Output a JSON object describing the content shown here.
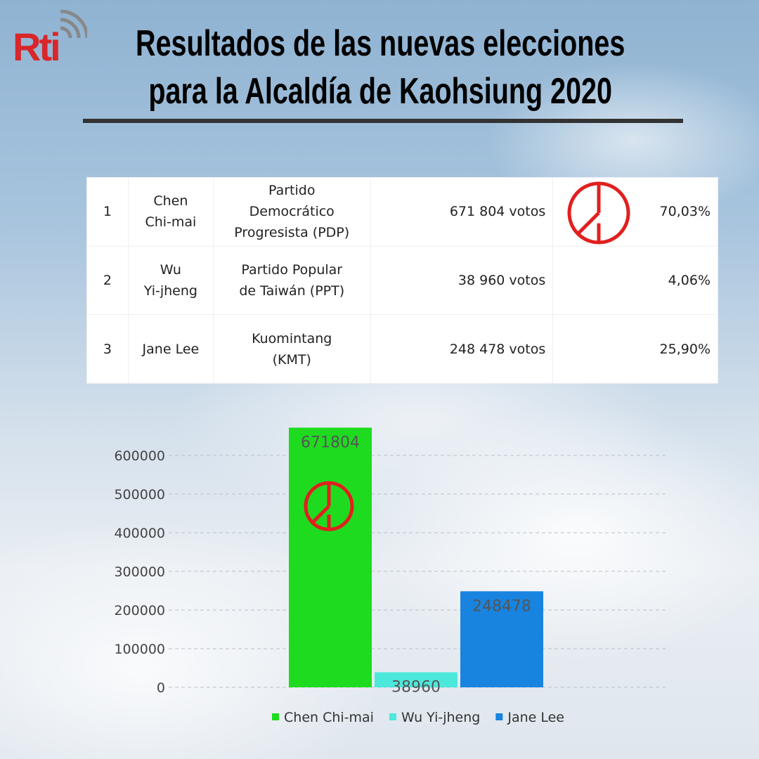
{
  "header": {
    "logo": "Rti",
    "title_lines": [
      "Resultados de las nuevas elecciones",
      "para la Alcaldía de Kaohsiung 2020"
    ]
  },
  "table": {
    "rows": [
      [
        "1",
        "Chen\nChi-mai",
        "Partido\nDemocrático\nProgresista (PDP)",
        "671 804 votos",
        "70,03%"
      ],
      [
        "2",
        "Wu\nYi-jheng",
        "Partido Popular\nde Taiwán (PPT)",
        "38 960 votos",
        "4,06%"
      ],
      [
        "3",
        "Jane Lee",
        "Kuomintang\n(KMT)",
        "248 478 votos",
        "25,90%"
      ]
    ]
  },
  "chart_data": {
    "type": "bar",
    "categories": [
      null
    ],
    "series": [
      {
        "name": "Chen Chi-mai",
        "color": "#1fdb1f",
        "values": [
          671804
        ]
      },
      {
        "name": "Wu Yi-jheng",
        "color": "#4de8dc",
        "values": [
          38960
        ]
      },
      {
        "name": "Jane Lee",
        "color": "#1884e0",
        "values": [
          248478
        ]
      }
    ],
    "ylim": [
      0,
      700000
    ],
    "yticks": [
      0,
      100000,
      200000,
      300000,
      400000,
      500000,
      600000
    ],
    "grid": true,
    "legend": "bottom"
  }
}
